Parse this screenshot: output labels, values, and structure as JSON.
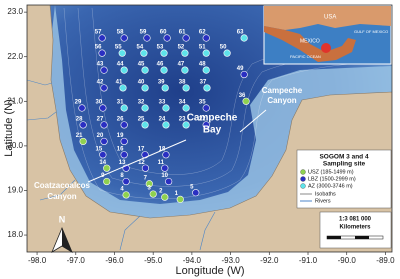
{
  "chart_data": {
    "type": "map",
    "xlabel": "Longitude (W)",
    "ylabel": "Latitude (N)",
    "xlim": [
      -98.26,
      -88.83
    ],
    "ylim": [
      17.62,
      23.16
    ],
    "xticks": [
      {
        "value": -98,
        "label": "-98.0"
      },
      {
        "value": -97,
        "label": "-97.0"
      },
      {
        "value": -96,
        "label": "-96.0"
      },
      {
        "value": -95,
        "label": "-95.0"
      },
      {
        "value": -94,
        "label": "-94.0"
      },
      {
        "value": -93,
        "label": "-93.0"
      },
      {
        "value": -92,
        "label": "-92.0"
      },
      {
        "value": -91,
        "label": "-91.0"
      },
      {
        "value": -90,
        "label": "-90.0"
      },
      {
        "value": -89,
        "label": "-89.0"
      }
    ],
    "yticks": [
      {
        "value": 18,
        "label": "18.0"
      },
      {
        "value": 19,
        "label": "19.0"
      },
      {
        "value": 20,
        "label": "20.0"
      },
      {
        "value": 21,
        "label": "21.0"
      },
      {
        "value": 22,
        "label": "22.0"
      },
      {
        "value": 23,
        "label": "23.0"
      }
    ],
    "legend": {
      "title": "SOGOM 3 and 4",
      "subtitle": "Sampling site",
      "zones": [
        {
          "name": "USZ (185-1499 m)",
          "color": "#8fd14f"
        },
        {
          "name": "LBZ (1500-2999 m)",
          "color": "#2a2fc2"
        },
        {
          "name": "AZ (3000-3746 m)",
          "color": "#5ee3ea"
        }
      ],
      "lines": [
        "Isobaths",
        "Rivers"
      ]
    },
    "scale": {
      "ratio": "1:3 081 000",
      "unit": "Kilometers"
    },
    "north": "N",
    "annotations": [
      [
        "Campeche",
        "Bay"
      ],
      [
        "Campeche",
        "Canyon"
      ],
      [
        "Coatzacoalcos",
        "Canyon"
      ]
    ],
    "inset": {
      "labels": [
        "USA",
        "MEXICO",
        "GULF OF MEXICO",
        "PACIFIC OCEAN"
      ]
    },
    "stations": [
      {
        "label": "57",
        "lon": -96.32,
        "lat": 22.42,
        "zone": 1
      },
      {
        "label": "58",
        "lon": -95.75,
        "lat": 22.42,
        "zone": 1
      },
      {
        "label": "59",
        "lon": -95.16,
        "lat": 22.42,
        "zone": 1
      },
      {
        "label": "60",
        "lon": -94.64,
        "lat": 22.42,
        "zone": 1
      },
      {
        "label": "61",
        "lon": -94.15,
        "lat": 22.42,
        "zone": 1
      },
      {
        "label": "62",
        "lon": -93.63,
        "lat": 22.42,
        "zone": 1
      },
      {
        "label": "63",
        "lon": -92.65,
        "lat": 22.42,
        "zone": 2
      },
      {
        "label": "56",
        "lon": -96.32,
        "lat": 22.08,
        "zone": 1
      },
      {
        "label": "55",
        "lon": -95.8,
        "lat": 22.08,
        "zone": 2
      },
      {
        "label": "54",
        "lon": -95.24,
        "lat": 22.08,
        "zone": 2
      },
      {
        "label": "53",
        "lon": -94.72,
        "lat": 22.08,
        "zone": 2
      },
      {
        "label": "52",
        "lon": -94.18,
        "lat": 22.08,
        "zone": 2
      },
      {
        "label": "51",
        "lon": -93.63,
        "lat": 22.08,
        "zone": 2
      },
      {
        "label": "50",
        "lon": -93.09,
        "lat": 22.08,
        "zone": 2
      },
      {
        "label": "43",
        "lon": -96.27,
        "lat": 21.7,
        "zone": 1
      },
      {
        "label": "44",
        "lon": -95.75,
        "lat": 21.7,
        "zone": 2
      },
      {
        "label": "45",
        "lon": -95.21,
        "lat": 21.7,
        "zone": 2
      },
      {
        "label": "46",
        "lon": -94.72,
        "lat": 21.7,
        "zone": 2
      },
      {
        "label": "47",
        "lon": -94.18,
        "lat": 21.7,
        "zone": 2
      },
      {
        "label": "48",
        "lon": -93.63,
        "lat": 21.7,
        "zone": 2
      },
      {
        "label": "49",
        "lon": -92.65,
        "lat": 21.6,
        "zone": 1
      },
      {
        "label": "42",
        "lon": -96.27,
        "lat": 21.3,
        "zone": 1
      },
      {
        "label": "41",
        "lon": -95.78,
        "lat": 21.3,
        "zone": 2
      },
      {
        "label": "40",
        "lon": -95.21,
        "lat": 21.3,
        "zone": 2
      },
      {
        "label": "39",
        "lon": -94.69,
        "lat": 21.3,
        "zone": 2
      },
      {
        "label": "38",
        "lon": -94.15,
        "lat": 21.3,
        "zone": 2
      },
      {
        "label": "37",
        "lon": -93.61,
        "lat": 21.3,
        "zone": 2
      },
      {
        "label": "29",
        "lon": -96.84,
        "lat": 20.85,
        "zone": 1
      },
      {
        "label": "30",
        "lon": -96.3,
        "lat": 20.85,
        "zone": 1
      },
      {
        "label": "31",
        "lon": -95.75,
        "lat": 20.85,
        "zone": 2
      },
      {
        "label": "32",
        "lon": -95.21,
        "lat": 20.85,
        "zone": 2
      },
      {
        "label": "33",
        "lon": -94.67,
        "lat": 20.85,
        "zone": 2
      },
      {
        "label": "34",
        "lon": -94.15,
        "lat": 20.85,
        "zone": 2
      },
      {
        "label": "35",
        "lon": -93.63,
        "lat": 20.85,
        "zone": 1
      },
      {
        "label": "36",
        "lon": -92.6,
        "lat": 21.0,
        "zone": 0
      },
      {
        "label": "28",
        "lon": -96.81,
        "lat": 20.47,
        "zone": 1
      },
      {
        "label": "27",
        "lon": -96.27,
        "lat": 20.47,
        "zone": 1
      },
      {
        "label": "26",
        "lon": -95.75,
        "lat": 20.47,
        "zone": 1
      },
      {
        "label": "25",
        "lon": -95.21,
        "lat": 20.47,
        "zone": 2
      },
      {
        "label": "24",
        "lon": -94.67,
        "lat": 20.47,
        "zone": 2
      },
      {
        "label": "23",
        "lon": -94.15,
        "lat": 20.47,
        "zone": 2
      },
      {
        "label": "22",
        "lon": -93.63,
        "lat": 20.47,
        "zone": 1
      },
      {
        "label": "21",
        "lon": -96.81,
        "lat": 20.1,
        "zone": 0
      },
      {
        "label": "20",
        "lon": -96.27,
        "lat": 20.1,
        "zone": 1
      },
      {
        "label": "19",
        "lon": -95.75,
        "lat": 20.1,
        "zone": 1
      },
      {
        "label": "15",
        "lon": -96.3,
        "lat": 19.8,
        "zone": 1
      },
      {
        "label": "16",
        "lon": -95.75,
        "lat": 19.8,
        "zone": 1
      },
      {
        "label": "17",
        "lon": -95.21,
        "lat": 19.8,
        "zone": 1
      },
      {
        "label": "18",
        "lon": -94.67,
        "lat": 19.8,
        "zone": 1
      },
      {
        "label": "14",
        "lon": -96.2,
        "lat": 19.5,
        "zone": 0
      },
      {
        "label": "13",
        "lon": -95.7,
        "lat": 19.5,
        "zone": 1
      },
      {
        "label": "12",
        "lon": -95.2,
        "lat": 19.5,
        "zone": 1
      },
      {
        "label": "11",
        "lon": -94.7,
        "lat": 19.5,
        "zone": 1
      },
      {
        "label": "9",
        "lon": -96.2,
        "lat": 19.2,
        "zone": 0
      },
      {
        "label": "8",
        "lon": -95.7,
        "lat": 19.2,
        "zone": 1
      },
      {
        "label": "7",
        "lon": -95.1,
        "lat": 19.15,
        "zone": 0
      },
      {
        "label": "10",
        "lon": -94.6,
        "lat": 19.2,
        "zone": 1
      },
      {
        "label": "5",
        "lon": -93.9,
        "lat": 18.95,
        "zone": 1
      },
      {
        "label": "4",
        "lon": -95.7,
        "lat": 18.9,
        "zone": 0
      },
      {
        "label": "3",
        "lon": -95.0,
        "lat": 18.92,
        "zone": 0
      },
      {
        "label": "2",
        "lon": -94.7,
        "lat": 18.85,
        "zone": 0
      },
      {
        "label": "1",
        "lon": -94.3,
        "lat": 18.8,
        "zone": 0
      }
    ]
  }
}
